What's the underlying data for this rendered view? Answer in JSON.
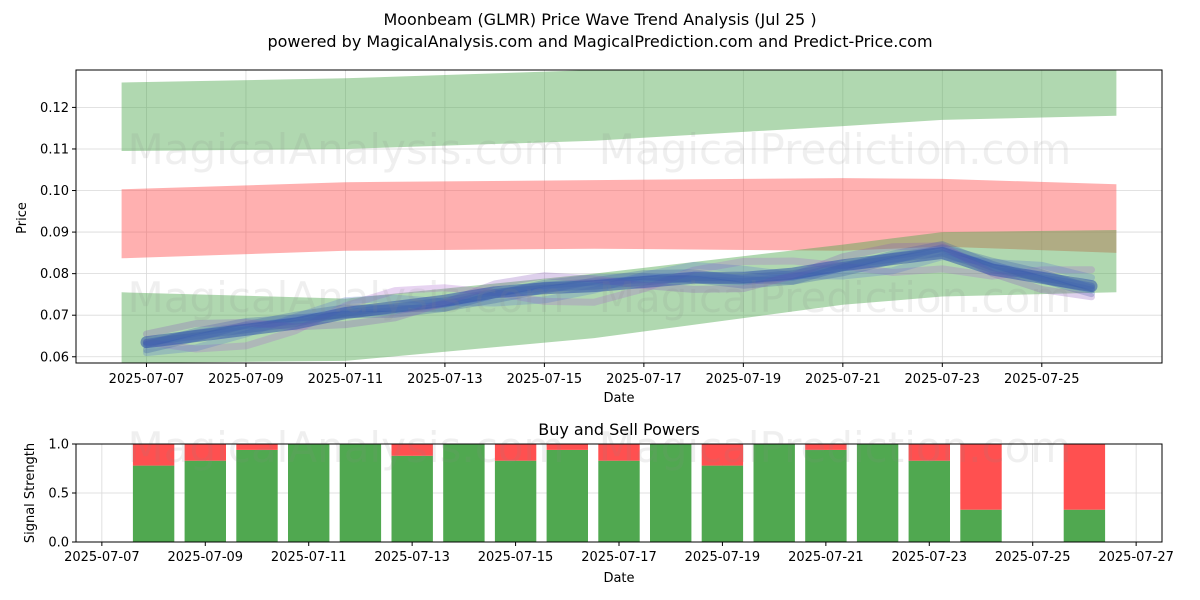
{
  "title_line1": "Moonbeam (GLMR) Price Wave Trend Analysis (Jul 25 )",
  "title_line2": "powered by MagicalAnalysis.com and MagicalPrediction.com and Predict-Price.com",
  "watermarks": [
    "MagicalAnalysis.com",
    "MagicalPrediction.com"
  ],
  "colors": {
    "green_band": "#4ca64c",
    "red_band": "#ff4c4c",
    "wave": "#3355aa",
    "buy": "#4ca64c",
    "sell": "#ff4c4c"
  },
  "chart_data": [
    {
      "type": "area",
      "title": "",
      "xlabel": "Date",
      "ylabel": "Price",
      "x_ticks": [
        "2025-07-07",
        "2025-07-09",
        "2025-07-11",
        "2025-07-13",
        "2025-07-15",
        "2025-07-17",
        "2025-07-19",
        "2025-07-21",
        "2025-07-23",
        "2025-07-25"
      ],
      "y_ticks": [
        "0.06",
        "0.07",
        "0.08",
        "0.09",
        "0.10",
        "0.11",
        "0.12"
      ],
      "xlim": [
        "2025-07-05T14:00",
        "2025-07-27T10:00"
      ],
      "ylim": [
        0.0585,
        0.129
      ],
      "grid": true,
      "bands": [
        {
          "color": "green",
          "x": [
            "2025-07-06T12:00",
            "2025-07-11",
            "2025-07-16",
            "2025-07-21",
            "2025-07-23",
            "2025-07-26T12:00"
          ],
          "upper": [
            0.126,
            0.127,
            0.129,
            0.13,
            0.131,
            0.13
          ],
          "lower": [
            0.1095,
            0.11,
            0.112,
            0.1155,
            0.117,
            0.118
          ]
        },
        {
          "color": "red",
          "x": [
            "2025-07-06T12:00",
            "2025-07-11",
            "2025-07-16",
            "2025-07-21",
            "2025-07-23",
            "2025-07-26T12:00"
          ],
          "upper": [
            0.1003,
            0.102,
            0.1025,
            0.103,
            0.1028,
            0.1015
          ]
        },
        {
          "color": "red",
          "x": [
            "2025-07-06T12:00",
            "2025-07-11",
            "2025-07-16",
            "2025-07-21",
            "2025-07-23",
            "2025-07-26T12:00"
          ],
          "lower": [
            0.0837,
            0.0855,
            0.086,
            0.0855,
            0.0865,
            0.085
          ]
        },
        {
          "color": "green",
          "x": [
            "2025-07-06T12:00",
            "2025-07-11",
            "2025-07-16",
            "2025-07-21",
            "2025-07-23",
            "2025-07-26T12:00"
          ],
          "upper": [
            0.0755,
            0.074,
            0.08,
            0.087,
            0.09,
            0.0905
          ],
          "lower": [
            0.0585,
            0.059,
            0.0645,
            0.0725,
            0.0745,
            0.0755
          ]
        }
      ],
      "wave": {
        "x": [
          "2025-07-07",
          "2025-07-08",
          "2025-07-09",
          "2025-07-10",
          "2025-07-11",
          "2025-07-12",
          "2025-07-13",
          "2025-07-14",
          "2025-07-15",
          "2025-07-16",
          "2025-07-17",
          "2025-07-18",
          "2025-07-19",
          "2025-07-20",
          "2025-07-21",
          "2025-07-22",
          "2025-07-23",
          "2025-07-24",
          "2025-07-25",
          "2025-07-26"
        ],
        "y": [
          0.0635,
          0.065,
          0.0665,
          0.068,
          0.0705,
          0.072,
          0.0735,
          0.0755,
          0.0765,
          0.077,
          0.078,
          0.079,
          0.079,
          0.08,
          0.082,
          0.0835,
          0.085,
          0.081,
          0.079,
          0.077
        ]
      }
    },
    {
      "type": "bar",
      "title": "Buy and Sell Powers",
      "xlabel": "Date",
      "ylabel": "Signal Strength",
      "x_ticks": [
        "2025-07-07",
        "2025-07-09",
        "2025-07-11",
        "2025-07-13",
        "2025-07-15",
        "2025-07-17",
        "2025-07-19",
        "2025-07-21",
        "2025-07-23",
        "2025-07-25",
        "2025-07-27"
      ],
      "y_ticks": [
        "0.0",
        "0.5",
        "1.0"
      ],
      "xlim": [
        "2025-07-06T12:00",
        "2025-07-27T12:00"
      ],
      "ylim": [
        0,
        1
      ],
      "categories": [
        "2025-07-08",
        "2025-07-09",
        "2025-07-10",
        "2025-07-11",
        "2025-07-12",
        "2025-07-13",
        "2025-07-14",
        "2025-07-15",
        "2025-07-16",
        "2025-07-17",
        "2025-07-18",
        "2025-07-19",
        "2025-07-20",
        "2025-07-21",
        "2025-07-22",
        "2025-07-23",
        "2025-07-24",
        "2025-07-26"
      ],
      "series": [
        {
          "name": "Buy",
          "values": [
            0.78,
            0.83,
            0.94,
            1.0,
            1.0,
            0.88,
            1.0,
            0.83,
            0.94,
            0.83,
            1.0,
            0.78,
            1.0,
            0.94,
            1.0,
            0.83,
            0.33,
            0.33
          ]
        },
        {
          "name": "Sell",
          "values": [
            0.22,
            0.17,
            0.06,
            0.0,
            0.0,
            0.12,
            0.0,
            0.17,
            0.06,
            0.17,
            0.0,
            0.22,
            0.0,
            0.06,
            0.0,
            0.17,
            0.67,
            0.67
          ]
        }
      ],
      "grid": true
    }
  ]
}
